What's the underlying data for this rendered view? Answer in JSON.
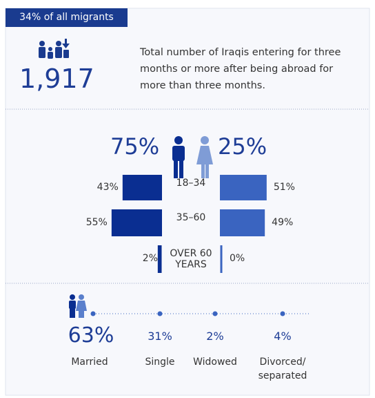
{
  "header": {
    "tag": "34% of all migrants"
  },
  "total": {
    "value": "1,917",
    "description": "Total number of Iraqis entering for three months or more after being abroad for more than three months."
  },
  "gender": {
    "male": "75%",
    "female": "25%"
  },
  "age_groups": {
    "categories": [
      "18–34",
      "35–60",
      "OVER 60 YEARS"
    ],
    "male": {
      "values": [
        43,
        55,
        2
      ],
      "value_labels": [
        "43%",
        "55%",
        "2%"
      ]
    },
    "female": {
      "values": [
        51,
        49,
        0
      ],
      "value_labels": [
        "51%",
        "49%",
        "0%"
      ]
    }
  },
  "marital_status": {
    "categories": [
      "Married",
      "Single",
      "Widowed",
      "Divorced/ separated"
    ],
    "values": [
      63,
      31,
      2,
      4
    ],
    "value_labels": [
      "63%",
      "31%",
      "2%",
      "4%"
    ]
  }
}
